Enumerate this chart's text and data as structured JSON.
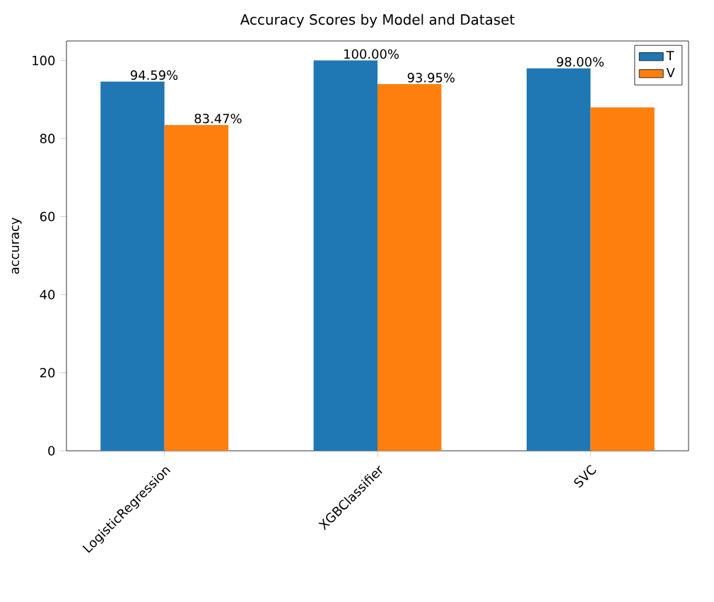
{
  "chart_data": {
    "type": "bar",
    "title": "Accuracy Scores by Model and Dataset",
    "ylabel": "accuracy",
    "categories": [
      "LogisticRegression",
      "XGBClassifier",
      "SVC"
    ],
    "series": [
      {
        "name": "T",
        "color": "#1f77b4",
        "values": [
          94.59,
          100.0,
          98.0
        ],
        "value_labels": [
          "94.59%",
          "100.00%",
          "98.00%"
        ]
      },
      {
        "name": "V",
        "color": "#ff7f0e",
        "values": [
          83.47,
          93.95,
          88
        ],
        "value_labels": [
          "83.47%",
          "93.95%",
          null
        ]
      }
    ],
    "ylim": [
      0,
      105
    ],
    "yticks": [
      0,
      20,
      40,
      60,
      80,
      100
    ],
    "legend": "top right",
    "grid": false
  }
}
